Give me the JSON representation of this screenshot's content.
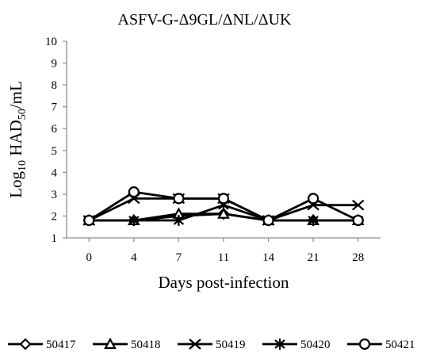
{
  "chart_data": {
    "type": "line",
    "title": "ASFV-G-Δ9GL/ΔNL/ΔUK",
    "xlabel": "Days post-infection",
    "ylabel_parts": {
      "pre": "Log",
      "sub1": "10",
      "mid": " HAD",
      "sub2": "50",
      "post": "/mL"
    },
    "categories": [
      "0",
      "4",
      "7",
      "11",
      "14",
      "21",
      "28"
    ],
    "yticks": [
      "1",
      "2",
      "3",
      "4",
      "5",
      "6",
      "7",
      "8",
      "9",
      "10"
    ],
    "ylim": [
      1,
      10
    ],
    "grid": false,
    "legend_position": "bottom",
    "series": [
      {
        "name": "50417",
        "marker": "diamond",
        "values": [
          1.8,
          1.8,
          2.0,
          2.1,
          1.8,
          1.8,
          1.8
        ]
      },
      {
        "name": "50418",
        "marker": "triangle",
        "values": [
          1.8,
          1.8,
          2.1,
          2.1,
          1.8,
          1.8,
          1.8
        ]
      },
      {
        "name": "50419",
        "marker": "x",
        "values": [
          1.8,
          2.8,
          2.8,
          2.8,
          1.8,
          2.5,
          2.5
        ]
      },
      {
        "name": "50420",
        "marker": "asterisk",
        "values": [
          1.8,
          1.8,
          1.8,
          2.5,
          1.8,
          1.8,
          1.8
        ]
      },
      {
        "name": "50421",
        "marker": "circle",
        "values": [
          1.8,
          3.1,
          2.8,
          2.8,
          1.8,
          2.8,
          1.8
        ]
      }
    ],
    "colors": {
      "line": "#000000",
      "axis": "#8c8c8c",
      "marker_fill": "#ffffff"
    }
  }
}
